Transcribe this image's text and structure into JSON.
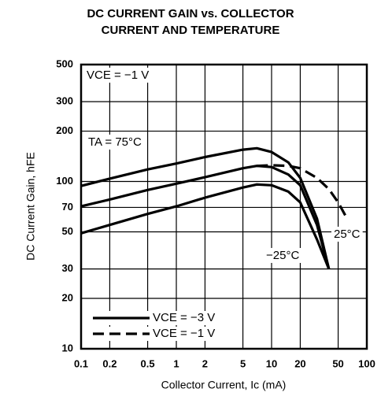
{
  "chart_data": {
    "type": "line",
    "title": [
      "DC CURRENT GAIN vs. COLLECTOR",
      "CURRENT AND TEMPERATURE"
    ],
    "x_label": "Collector Current, Ic (mA)",
    "y_label": "DC Current Gain, hFE",
    "log_x": true,
    "log_y": true,
    "grid": true,
    "color": "#000000",
    "xlim": [
      0.1,
      100
    ],
    "ylim": [
      10,
      500
    ],
    "xticks": [
      0.1,
      0.2,
      0.5,
      1,
      2,
      5,
      10,
      20,
      50,
      100
    ],
    "yticks": [
      10,
      20,
      30,
      50,
      70,
      100,
      200,
      300,
      500
    ],
    "annotations": [
      "VCE = −1 V"
    ],
    "legend": [
      {
        "label": "VCE = −3 V",
        "dashed": false
      },
      {
        "label": "VCE = −1 V",
        "dashed": true
      }
    ],
    "series": [
      {
        "label": "TA = 75°C",
        "dashed": false,
        "x": [
          0.1,
          0.2,
          0.5,
          1,
          2,
          5,
          7,
          10,
          15,
          20,
          30,
          40
        ],
        "values": [
          94,
          104,
          118,
          128,
          140,
          155,
          158,
          150,
          130,
          105,
          60,
          30
        ]
      },
      {
        "label": "25°C",
        "dashed": false,
        "x": [
          0.1,
          0.2,
          0.5,
          1,
          2,
          5,
          7,
          10,
          15,
          20,
          30,
          40
        ],
        "values": [
          71,
          78,
          89,
          97,
          106,
          120,
          124,
          122,
          110,
          95,
          55,
          30
        ]
      },
      {
        "label": "−25°C",
        "dashed": false,
        "x": [
          0.1,
          0.2,
          0.5,
          1,
          2,
          5,
          7,
          10,
          15,
          20,
          30,
          40
        ],
        "values": [
          49,
          55,
          64,
          71,
          80,
          92,
          96,
          95,
          87,
          75,
          45,
          30
        ]
      },
      {
        "dashed": true,
        "x": [
          7,
          10,
          15,
          20,
          30,
          40,
          50,
          60
        ],
        "values": [
          124,
          125,
          124,
          120,
          105,
          90,
          75,
          62
        ]
      }
    ]
  }
}
